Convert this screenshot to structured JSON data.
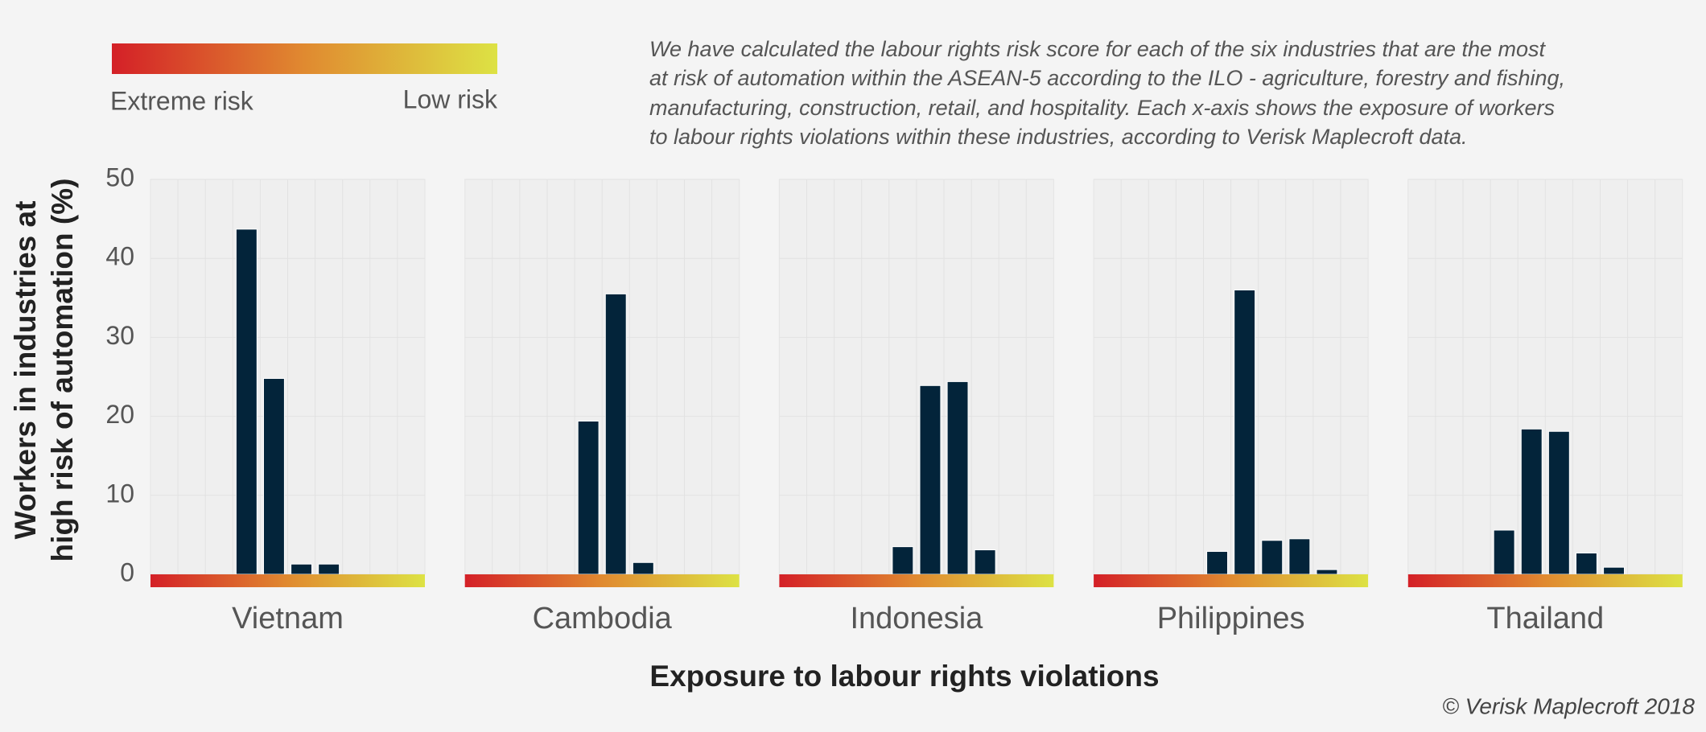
{
  "legend": {
    "high": "Extreme risk",
    "low": "Low risk"
  },
  "note": [
    "We have calculated the labour rights risk score for each of the six industries that are the most",
    "at risk of automation within the ASEAN-5 according to the ILO - agriculture, forestry and fishing,",
    "manufacturing, construction, retail, and hospitality. Each x-axis shows the exposure of workers",
    "to labour rights violations within these industries, according to Verisk Maplecroft data."
  ],
  "y_label": [
    "Workers in industries at",
    "high risk of automation (%)"
  ],
  "x_label": "Exposure to labour rights violations",
  "credit": "© Verisk Maplecroft 2018",
  "chart_data": [
    {
      "type": "bar",
      "title": "Vietnam",
      "color": "#03243a",
      "grid": true,
      "categories": [
        null,
        null,
        null,
        null,
        null,
        null,
        null,
        null,
        null,
        null
      ],
      "values": [
        null,
        null,
        null,
        43.7,
        24.8,
        1.3,
        1.3,
        null,
        null,
        null
      ],
      "ylim": [
        0,
        50
      ],
      "yticks": [
        0,
        10,
        20,
        30,
        40,
        50
      ]
    },
    {
      "type": "bar",
      "title": "Cambodia",
      "color": "#03243a",
      "grid": true,
      "categories": [
        null,
        null,
        null,
        null,
        null,
        null,
        null,
        null,
        null,
        null
      ],
      "values": [
        null,
        null,
        null,
        null,
        19.4,
        35.5,
        1.5,
        null,
        null,
        null
      ],
      "ylim": [
        0,
        50
      ],
      "yticks": [
        0,
        10,
        20,
        30,
        40,
        50
      ]
    },
    {
      "type": "bar",
      "title": "Indonesia",
      "color": "#03243a",
      "grid": true,
      "categories": [
        null,
        null,
        null,
        null,
        null,
        null,
        null,
        null,
        null,
        null
      ],
      "values": [
        null,
        null,
        null,
        null,
        3.5,
        23.9,
        24.4,
        3.1,
        null,
        null
      ],
      "ylim": [
        0,
        50
      ],
      "yticks": [
        0,
        10,
        20,
        30,
        40,
        50
      ]
    },
    {
      "type": "bar",
      "title": "Philippines",
      "color": "#03243a",
      "grid": true,
      "categories": [
        null,
        null,
        null,
        null,
        null,
        null,
        null,
        null,
        null,
        null
      ],
      "values": [
        null,
        null,
        null,
        null,
        2.9,
        36.0,
        4.3,
        4.5,
        0.6,
        null
      ],
      "ylim": [
        0,
        50
      ],
      "yticks": [
        0,
        10,
        20,
        30,
        40,
        50
      ]
    },
    {
      "type": "bar",
      "title": "Thailand",
      "color": "#03243a",
      "grid": true,
      "categories": [
        null,
        null,
        null,
        null,
        null,
        null,
        null,
        null,
        null,
        null
      ],
      "values": [
        null,
        null,
        null,
        5.6,
        18.4,
        18.1,
        2.7,
        0.9,
        null,
        null
      ],
      "ylim": [
        0,
        50
      ],
      "yticks": [
        0,
        10,
        20,
        30,
        40,
        50
      ]
    }
  ]
}
